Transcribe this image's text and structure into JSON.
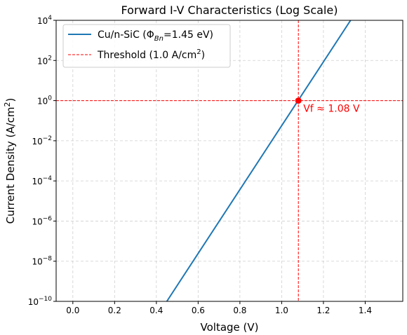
{
  "chart_data": {
    "type": "line",
    "title": "Forward I-V Characteristics (Log Scale)",
    "xlabel": "Voltage (V)",
    "ylabel": {
      "base": "Current Density (A/cm",
      "sup": "2",
      "tail": ")"
    },
    "xlim": [
      -0.08,
      1.58
    ],
    "ylim": [
      1e-10,
      10000
    ],
    "y_scale": "log",
    "grid": true,
    "legend_placement": "top-left",
    "x_ticks": [
      {
        "value": 0.0,
        "label": "0.0"
      },
      {
        "value": 0.2,
        "label": "0.2"
      },
      {
        "value": 0.4,
        "label": "0.4"
      },
      {
        "value": 0.6,
        "label": "0.6"
      },
      {
        "value": 0.8,
        "label": "0.8"
      },
      {
        "value": 1.0,
        "label": "1.0"
      },
      {
        "value": 1.2,
        "label": "1.2"
      },
      {
        "value": 1.4,
        "label": "1.4"
      }
    ],
    "y_ticks": [
      {
        "exp": -10,
        "base": "10",
        "sup": "−10"
      },
      {
        "exp": -8,
        "base": "10",
        "sup": "−8"
      },
      {
        "exp": -6,
        "base": "10",
        "sup": "−6"
      },
      {
        "exp": -4,
        "base": "10",
        "sup": "−4"
      },
      {
        "exp": -2,
        "base": "10",
        "sup": "−2"
      },
      {
        "exp": 0,
        "base": "10",
        "sup": "0"
      },
      {
        "exp": 2,
        "base": "10",
        "sup": "2"
      },
      {
        "exp": 4,
        "base": "10",
        "sup": "4"
      }
    ],
    "series": [
      {
        "name": {
          "pre": "Cu/n-SiC (Φ",
          "sub": "Bn",
          "post": "=1.45 eV)"
        },
        "color": "#1f77b4",
        "style": "solid",
        "x": [
          0.45,
          1.33
        ],
        "y": [
          1e-10,
          10000
        ]
      }
    ],
    "threshold": {
      "name": {
        "pre": "Threshold (1.0 A/cm",
        "sup": "2",
        "post": ")"
      },
      "color": "#ff0000",
      "style": "dashed",
      "y": 1.0,
      "vf": 1.08
    },
    "marker": {
      "x": 1.08,
      "y": 1.0,
      "color": "#ff0000"
    },
    "annotation": {
      "text": "Vf ≈ 1.08 V",
      "color": "#ff0000",
      "x": 1.08,
      "y": 1.0
    }
  }
}
